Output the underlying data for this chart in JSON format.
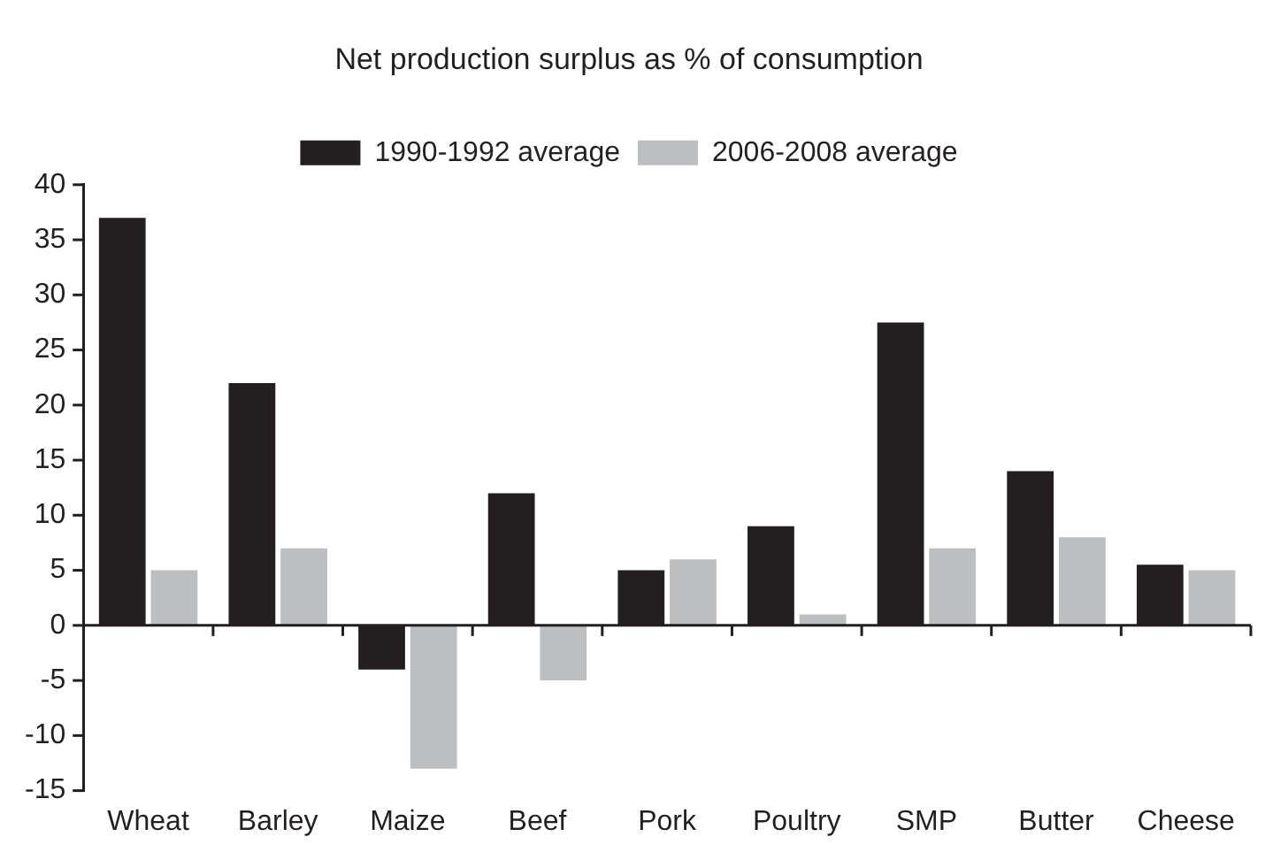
{
  "chart_data": {
    "type": "bar",
    "title": "Net production surplus as % of consumption",
    "categories": [
      "Wheat",
      "Barley",
      "Maize",
      "Beef",
      "Pork",
      "Poultry",
      "SMP",
      "Butter",
      "Cheese"
    ],
    "series": [
      {
        "name": "1990-1992 average",
        "color": "#231f20",
        "values": [
          37,
          22,
          -4,
          12,
          5,
          9,
          27.5,
          14,
          5.5
        ]
      },
      {
        "name": "2006-2008 average",
        "color": "#bcbec0",
        "values": [
          5,
          7,
          -13,
          -5,
          6,
          1,
          7,
          8,
          5
        ]
      }
    ],
    "ylim": [
      -15,
      40
    ],
    "yticks": [
      -15,
      -10,
      -5,
      0,
      5,
      10,
      15,
      20,
      25,
      30,
      35,
      40
    ],
    "legend": "top"
  }
}
